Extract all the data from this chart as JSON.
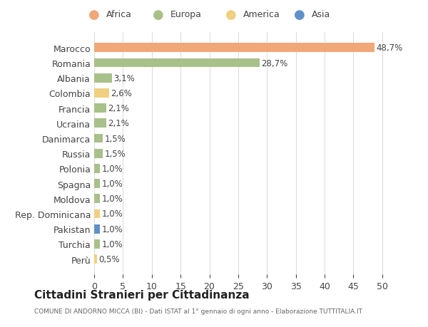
{
  "countries": [
    "Marocco",
    "Romania",
    "Albania",
    "Colombia",
    "Francia",
    "Ucraina",
    "Danimarca",
    "Russia",
    "Polonia",
    "Spagna",
    "Moldova",
    "Rep. Dominicana",
    "Pakistan",
    "Turchia",
    "Perù"
  ],
  "values": [
    48.7,
    28.7,
    3.1,
    2.6,
    2.1,
    2.1,
    1.5,
    1.5,
    1.0,
    1.0,
    1.0,
    1.0,
    1.0,
    1.0,
    0.5
  ],
  "labels": [
    "48,7%",
    "28,7%",
    "3,1%",
    "2,6%",
    "2,1%",
    "2,1%",
    "1,5%",
    "1,5%",
    "1,0%",
    "1,0%",
    "1,0%",
    "1,0%",
    "1,0%",
    "1,0%",
    "0,5%"
  ],
  "continents": [
    "Africa",
    "Europa",
    "Europa",
    "America",
    "Europa",
    "Europa",
    "Europa",
    "Europa",
    "Europa",
    "Europa",
    "Europa",
    "America",
    "Asia",
    "Europa",
    "America"
  ],
  "continent_colors": {
    "Africa": "#F0A878",
    "Europa": "#A8C08A",
    "America": "#F0D080",
    "Asia": "#6090C8"
  },
  "legend_order": [
    "Africa",
    "Europa",
    "America",
    "Asia"
  ],
  "title": "Cittadini Stranieri per Cittadinanza",
  "subtitle": "COMUNE DI ANDORNO MICCA (BI) - Dati ISTAT al 1° gennaio di ogni anno - Elaborazione TUTTITALIA.IT",
  "xlim": [
    0,
    52
  ],
  "xticks": [
    0,
    5,
    10,
    15,
    20,
    25,
    30,
    35,
    40,
    45,
    50
  ],
  "background_color": "#ffffff",
  "grid_color": "#dddddd"
}
